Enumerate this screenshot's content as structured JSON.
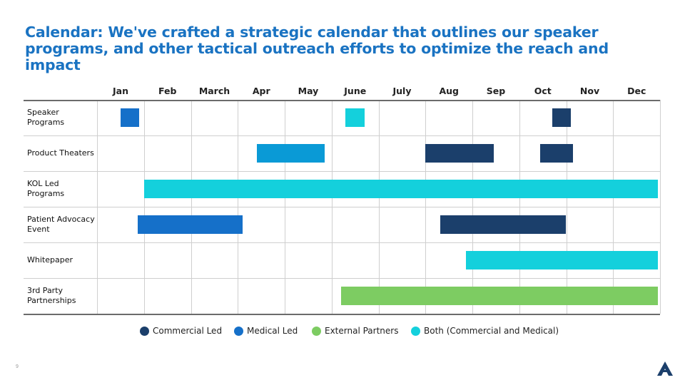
{
  "title": "Calendar: We've crafted a strategic calendar that outlines our speaker programs, and other tactical outreach efforts to optimize the reach and impact",
  "page_number": "9",
  "colors": {
    "commercial": "#1b3f6b",
    "medical": "#1570c9",
    "external": "#7dcc62",
    "both": "#14d0dc",
    "product_theater_blue": "#0a9ad6",
    "title": "#1a73c2"
  },
  "chart_data": {
    "type": "gantt",
    "months": [
      "Jan",
      "Feb",
      "March",
      "Apr",
      "May",
      "June",
      "July",
      "Aug",
      "Sep",
      "Oct",
      "Nov",
      "Dec"
    ],
    "rows": [
      {
        "label": "Speaker Programs",
        "label_lines": [
          "Speaker",
          "Programs"
        ],
        "bars": [
          {
            "start": 0.5,
            "end": 0.9,
            "color_key": "medical"
          },
          {
            "start": 5.3,
            "end": 5.7,
            "color_key": "both"
          },
          {
            "start": 9.7,
            "end": 10.1,
            "color_key": "commercial"
          }
        ]
      },
      {
        "label": "Product Theaters",
        "label_lines": [
          "Product Theaters"
        ],
        "bars": [
          {
            "start": 3.4,
            "end": 4.85,
            "color_key": "product_theater_blue"
          },
          {
            "start": 7.0,
            "end": 8.45,
            "color_key": "commercial"
          },
          {
            "start": 9.45,
            "end": 10.15,
            "color_key": "commercial"
          }
        ]
      },
      {
        "label": "KOL Led Programs",
        "label_lines": [
          "KOL Led",
          "Programs"
        ],
        "bars": [
          {
            "start": 1.0,
            "end": 11.95,
            "color_key": "both"
          }
        ]
      },
      {
        "label": "Patient Advocacy Event",
        "label_lines": [
          "Patient Advocacy",
          "Event"
        ],
        "bars": [
          {
            "start": 0.87,
            "end": 3.1,
            "color_key": "medical"
          },
          {
            "start": 7.32,
            "end": 10.0,
            "color_key": "commercial"
          }
        ]
      },
      {
        "label": "Whitepaper",
        "label_lines": [
          "Whitepaper"
        ],
        "bars": [
          {
            "start": 7.87,
            "end": 11.95,
            "color_key": "both"
          }
        ]
      },
      {
        "label": "3rd Party Partnerships",
        "label_lines": [
          "3rd Party",
          "Partnerships"
        ],
        "bars": [
          {
            "start": 5.2,
            "end": 11.95,
            "color_key": "external"
          }
        ]
      }
    ],
    "legend": [
      {
        "label": "Commercial Led",
        "color_key": "commercial"
      },
      {
        "label": "Medical Led",
        "color_key": "medical"
      },
      {
        "label": "External Partners",
        "color_key": "external"
      },
      {
        "label": "Both (Commercial and Medical)",
        "color_key": "both"
      }
    ]
  }
}
